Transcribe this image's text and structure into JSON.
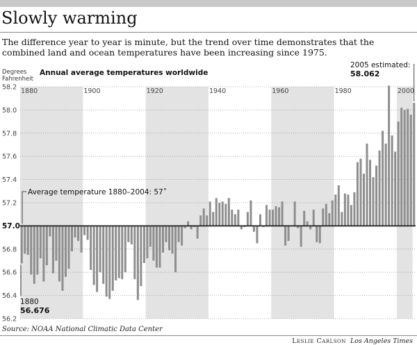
{
  "headline": "Slowly warming",
  "deck": "The difference year to year is minute, but the trend over time demonstrates that the combined land and ocean temperatures have been increasing since 1975.",
  "source": "Source: NOAA National Climatic Data Center",
  "credit": {
    "author": "Leslie Carlson",
    "org": "Los Angeles Times"
  },
  "chart_data": {
    "type": "bar",
    "title": "Annual average temperatures worldwide",
    "ylabel": [
      "Degrees",
      "Fahrenheit"
    ],
    "baseline": 57.0,
    "ylim": [
      56.2,
      58.2
    ],
    "yticks": [
      56.2,
      56.4,
      56.6,
      56.8,
      57.0,
      57.2,
      57.4,
      57.6,
      57.8,
      58.0,
      58.2
    ],
    "yticklabels": [
      "56.2",
      "56.4",
      "56.6",
      "56.8",
      "57.0",
      "57.2",
      "57.4",
      "57.6",
      "57.8",
      "58.0",
      "58.2"
    ],
    "xrange": [
      1880,
      2005
    ],
    "xticks": [
      1880,
      1900,
      1920,
      1940,
      1960,
      1980,
      2000
    ],
    "xticklabels": [
      "1880",
      "1900",
      "1920",
      "1940",
      "1960",
      "1980",
      "2000"
    ],
    "shaded_periods": [
      [
        1880,
        1900
      ],
      [
        1920,
        1940
      ],
      [
        1960,
        1980
      ],
      [
        2000,
        2005
      ]
    ],
    "reference_label": "Average temperature 1880–2004: 57˚",
    "annotations": {
      "start": {
        "year": "1880",
        "value": "56.676"
      },
      "end": {
        "label": "2005 estimated:",
        "value": "58.062"
      }
    },
    "years": [
      1880,
      1881,
      1882,
      1883,
      1884,
      1885,
      1886,
      1887,
      1888,
      1889,
      1890,
      1891,
      1892,
      1893,
      1894,
      1895,
      1896,
      1897,
      1898,
      1899,
      1900,
      1901,
      1902,
      1903,
      1904,
      1905,
      1906,
      1907,
      1908,
      1909,
      1910,
      1911,
      1912,
      1913,
      1914,
      1915,
      1916,
      1917,
      1918,
      1919,
      1920,
      1921,
      1922,
      1923,
      1924,
      1925,
      1926,
      1927,
      1928,
      1929,
      1930,
      1931,
      1932,
      1933,
      1934,
      1935,
      1936,
      1937,
      1938,
      1939,
      1940,
      1941,
      1942,
      1943,
      1944,
      1945,
      1946,
      1947,
      1948,
      1949,
      1950,
      1951,
      1952,
      1953,
      1954,
      1955,
      1956,
      1957,
      1958,
      1959,
      1960,
      1961,
      1962,
      1963,
      1964,
      1965,
      1966,
      1967,
      1968,
      1969,
      1970,
      1971,
      1972,
      1973,
      1974,
      1975,
      1976,
      1977,
      1978,
      1979,
      1980,
      1981,
      1982,
      1983,
      1984,
      1985,
      1986,
      1987,
      1988,
      1989,
      1990,
      1991,
      1992,
      1993,
      1994,
      1995,
      1996,
      1997,
      1998,
      1999,
      2000,
      2001,
      2002,
      2003,
      2004,
      2005
    ],
    "values": [
      56.676,
      56.76,
      56.75,
      56.58,
      56.5,
      56.58,
      56.72,
      56.52,
      56.66,
      56.91,
      56.59,
      56.7,
      56.52,
      56.44,
      56.56,
      56.63,
      56.78,
      56.9,
      56.87,
      56.77,
      56.92,
      56.88,
      56.62,
      56.49,
      56.43,
      56.6,
      56.5,
      56.39,
      56.37,
      56.44,
      56.53,
      56.55,
      56.54,
      56.6,
      56.86,
      56.84,
      56.54,
      56.36,
      56.48,
      56.68,
      56.72,
      56.82,
      56.7,
      56.64,
      56.64,
      56.77,
      56.86,
      56.79,
      56.76,
      56.6,
      56.86,
      56.83,
      56.98,
      57.04,
      56.97,
      56.99,
      56.89,
      57.09,
      57.15,
      57.09,
      57.21,
      57.12,
      57.24,
      57.2,
      57.21,
      57.19,
      57.24,
      57.14,
      57.1,
      57.14,
      56.97,
      56.99,
      57.12,
      57.22,
      56.95,
      56.85,
      57.1,
      56.99,
      57.18,
      57.14,
      57.14,
      57.17,
      57.16,
      57.21,
      56.83,
      56.87,
      57.0,
      57.21,
      56.98,
      56.82,
      57.13,
      57.04,
      56.97,
      57.14,
      56.86,
      56.85,
      57.15,
      57.19,
      57.11,
      57.22,
      57.27,
      57.35,
      57.12,
      57.28,
      57.27,
      57.18,
      57.29,
      57.55,
      57.58,
      57.45,
      57.71,
      57.57,
      57.42,
      57.52,
      57.65,
      57.82,
      57.71,
      58.21,
      57.78,
      57.64,
      57.9,
      58.02,
      58.0,
      58.01,
      57.96,
      58.062
    ]
  }
}
